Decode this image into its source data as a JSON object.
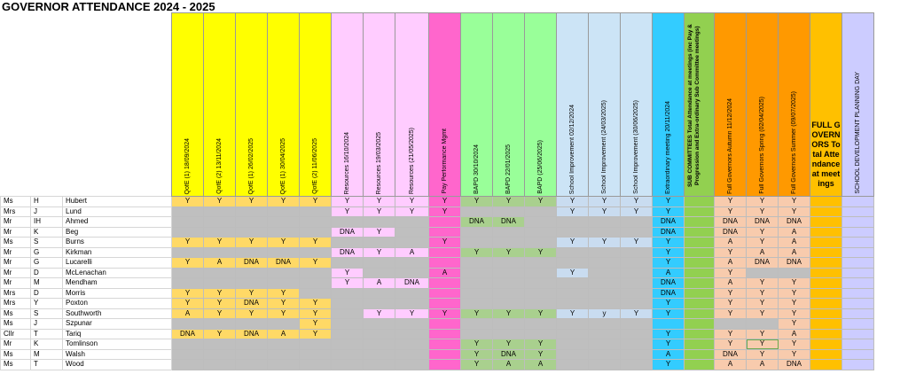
{
  "title": "GOVERNOR ATTENDANCE 2024 - 2025",
  "headers": [
    {
      "label": "QofE (1)  18/09/2024",
      "color": "yellow"
    },
    {
      "label": "QofE (2)  13/11/2024",
      "color": "yellow"
    },
    {
      "label": "QofE (1) 26/02/2025",
      "color": "yellow"
    },
    {
      "label": "QofE (1) 30/04/2025",
      "color": "yellow"
    },
    {
      "label": "QofE (2) 11/06/2025",
      "color": "yellow"
    },
    {
      "label": "Resources 16/10/2024",
      "color": "pink"
    },
    {
      "label": "Resources 19/03/2025",
      "color": "pink"
    },
    {
      "label": "Resources (21/05/2025)",
      "color": "pink"
    },
    {
      "label": "Pay Performance  Mgmt",
      "color": "mag"
    },
    {
      "label": "BAPD 30/10/2024",
      "color": "green"
    },
    {
      "label": "BAPD 22/01/2025",
      "color": "green"
    },
    {
      "label": "BAPD (25/06/2025)",
      "color": "green"
    },
    {
      "label": "School Improvement  02/12/2024",
      "color": "lblue"
    },
    {
      "label": "School Improvement (24/03/2025)",
      "color": "lblue"
    },
    {
      "label": "School Improvement (30/06/2025)",
      "color": "lblue"
    },
    {
      "label": "Extraordinary meeting 20/11/2024",
      "color": "cyan"
    },
    {
      "label": "SUB COMMITTEES Total Attendance at meetings (inc Pay & Progression and Extra-ordinary Sub Committee meetings)",
      "color": "lime",
      "bold": true
    },
    {
      "label": "Full Governors Autumn 11/12/2024",
      "color": "orange"
    },
    {
      "label": "Full Governors Spring (02/04/2025)",
      "color": "orange"
    },
    {
      "label": "Full Governors Summer (09/07/2025)",
      "color": "orange"
    },
    {
      "label": "FULL GOVERNORS Total Attendance at meetings",
      "color": "gold",
      "horizontal": true
    },
    {
      "label": "SCHOOL DEVELOPMENT PLANNING DAY",
      "color": "lav"
    }
  ],
  "rows": [
    {
      "title": "Ms",
      "initial": "H",
      "name": "Hubert",
      "cells": [
        "Y",
        "Y",
        "Y",
        "Y",
        "Y",
        "Y",
        "Y",
        "Y",
        "Y",
        "Y",
        "Y",
        "Y",
        "Y",
        "Y",
        "Y",
        "Y",
        "",
        "Y",
        "Y",
        "Y",
        "",
        ""
      ]
    },
    {
      "title": "Mrs",
      "initial": "J",
      "name": "Lund",
      "cells": [
        "",
        "",
        "",
        "",
        "",
        "Y",
        "Y",
        "Y",
        "Y",
        "",
        "",
        "",
        "Y",
        "Y",
        "Y",
        "Y",
        "",
        "Y",
        "Y",
        "Y",
        "",
        ""
      ]
    },
    {
      "title": "Mr",
      "initial": "IH",
      "name": "Ahmed",
      "cells": [
        "",
        "",
        "",
        "",
        "",
        "",
        "",
        "",
        "",
        "DNA",
        "DNA",
        "",
        "",
        "",
        "",
        "DNA",
        "",
        "DNA",
        "DNA",
        "DNA",
        "",
        ""
      ]
    },
    {
      "title": "Mr",
      "initial": "K",
      "name": "Beg",
      "cells": [
        "",
        "",
        "",
        "",
        "",
        "DNA",
        "Y",
        "",
        "",
        "",
        "",
        "",
        "",
        "",
        "",
        "DNA",
        "",
        "DNA",
        "Y",
        "A",
        "",
        ""
      ]
    },
    {
      "title": "Ms",
      "initial": "S",
      "name": "Burns",
      "cells": [
        "Y",
        "Y",
        "Y",
        "Y",
        "Y",
        "",
        "",
        "",
        "Y",
        "",
        "",
        "",
        "Y",
        "Y",
        "Y",
        "Y",
        "",
        "A",
        "Y",
        "A",
        "",
        ""
      ]
    },
    {
      "title": "Mr",
      "initial": "G",
      "name": "Kirkman",
      "cells": [
        "",
        "",
        "",
        "",
        "",
        "DNA",
        "Y",
        "A",
        "",
        "Y",
        "Y",
        "Y",
        "",
        "",
        "",
        "Y",
        "",
        "Y",
        "A",
        "A",
        "",
        ""
      ]
    },
    {
      "title": "Mr",
      "initial": "G",
      "name": "Lucarelli",
      "cells": [
        "Y",
        "A",
        "DNA",
        "DNA",
        "Y",
        "",
        "",
        "",
        "",
        "",
        "",
        "",
        "",
        "",
        "",
        "Y",
        "",
        "A",
        "DNA",
        "DNA",
        "",
        ""
      ]
    },
    {
      "title": "Mr",
      "initial": "D",
      "name": "McLenachan",
      "cells": [
        "",
        "",
        "",
        "",
        "",
        "Y",
        "",
        "",
        "A",
        "",
        "",
        "",
        "Y",
        "",
        "",
        "A",
        "",
        "Y",
        "",
        "",
        "",
        ""
      ]
    },
    {
      "title": "Mr",
      "initial": "M",
      "name": "Mendham",
      "cells": [
        "",
        "",
        "",
        "",
        "",
        "Y",
        "A",
        "DNA",
        "",
        "",
        "",
        "",
        "",
        "",
        "",
        "DNA",
        "",
        "A",
        "Y",
        "Y",
        "",
        ""
      ]
    },
    {
      "title": "Mrs",
      "initial": "D",
      "name": "Morris",
      "cells": [
        "Y",
        "Y",
        "Y",
        "Y",
        "",
        "",
        "",
        "",
        "",
        "",
        "",
        "",
        "",
        "",
        "",
        "DNA",
        "",
        "Y",
        "Y",
        "Y",
        "",
        ""
      ]
    },
    {
      "title": "Mrs",
      "initial": "Y",
      "name": "Poxton",
      "cells": [
        "Y",
        "Y",
        "DNA",
        "Y",
        "Y",
        "",
        "",
        "",
        "",
        "",
        "",
        "",
        "",
        "",
        "",
        "Y",
        "",
        "Y",
        "Y",
        "Y",
        "",
        ""
      ]
    },
    {
      "title": "Ms",
      "initial": "S",
      "name": "Southworth",
      "cells": [
        "A",
        "Y",
        "Y",
        "Y",
        "Y",
        "",
        "Y",
        "Y",
        "Y",
        "Y",
        "Y",
        "Y",
        "Y",
        "y",
        "Y",
        "Y",
        "",
        "Y",
        "Y",
        "Y",
        "",
        ""
      ]
    },
    {
      "title": "Ms",
      "initial": "J",
      "name": "Szpunar",
      "cells": [
        "",
        "",
        "",
        "",
        "Y",
        "",
        "",
        "",
        "",
        "",
        "",
        "",
        "",
        "",
        "",
        "",
        "",
        "",
        "",
        "Y",
        "",
        ""
      ]
    },
    {
      "title": "Cllr",
      "initial": "T",
      "name": "Tariq",
      "cells": [
        "DNA",
        "Y",
        "DNA",
        "A",
        "Y",
        "",
        "",
        "",
        "",
        "",
        "",
        "",
        "",
        "",
        "",
        "Y",
        "",
        "Y",
        "Y",
        "A",
        "",
        ""
      ]
    },
    {
      "title": "Mr",
      "initial": "K",
      "name": "Tomlinson",
      "cells": [
        "",
        "",
        "",
        "",
        "",
        "",
        "",
        "",
        "",
        "Y",
        "Y",
        "Y",
        "",
        "",
        "",
        "Y",
        "",
        "Y",
        "Y",
        "Y",
        "",
        ""
      ]
    },
    {
      "title": "Ms",
      "initial": "M",
      "name": "Walsh",
      "cells": [
        "",
        "",
        "",
        "",
        "",
        "",
        "",
        "",
        "",
        "Y",
        "DNA",
        "Y",
        "",
        "",
        "",
        "A",
        "",
        "DNA",
        "Y",
        "Y",
        "",
        ""
      ]
    },
    {
      "title": "Ms",
      "initial": "T",
      "name": "Wood",
      "cells": [
        "",
        "",
        "",
        "",
        "",
        "",
        "",
        "",
        "",
        "Y",
        "A",
        "A",
        "",
        "",
        "",
        "Y",
        "",
        "A",
        "A",
        "DNA",
        "",
        ""
      ]
    }
  ]
}
